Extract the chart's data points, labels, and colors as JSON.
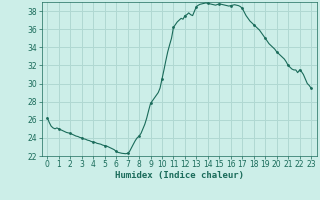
{
  "xlabel": "Humidex (Indice chaleur)",
  "bg_color": "#cceee8",
  "grid_color": "#b0d8d2",
  "line_color": "#1a6b5a",
  "xlim": [
    -0.5,
    23.5
  ],
  "ylim": [
    22,
    39
  ],
  "yticks": [
    22,
    24,
    26,
    28,
    30,
    32,
    34,
    36,
    38
  ],
  "xticks": [
    0,
    1,
    2,
    3,
    4,
    5,
    6,
    7,
    8,
    9,
    10,
    11,
    12,
    13,
    14,
    15,
    16,
    17,
    18,
    19,
    20,
    21,
    22,
    23
  ],
  "x": [
    0,
    0.17,
    0.33,
    0.5,
    0.67,
    0.83,
    1.0,
    1.17,
    1.33,
    1.5,
    1.67,
    1.83,
    2.0,
    2.17,
    2.33,
    2.5,
    2.67,
    2.83,
    3.0,
    3.17,
    3.33,
    3.5,
    3.67,
    3.83,
    4.0,
    4.17,
    4.33,
    4.5,
    4.67,
    4.83,
    5.0,
    5.17,
    5.33,
    5.5,
    5.67,
    5.83,
    6.0,
    6.17,
    6.33,
    6.5,
    6.67,
    6.83,
    7.0,
    7.17,
    7.33,
    7.5,
    7.67,
    7.83,
    8.0,
    8.17,
    8.33,
    8.5,
    8.67,
    8.83,
    9.0,
    9.17,
    9.33,
    9.5,
    9.67,
    9.83,
    10.0,
    10.17,
    10.33,
    10.5,
    10.67,
    10.83,
    11.0,
    11.17,
    11.33,
    11.5,
    11.67,
    11.83,
    12.0,
    12.17,
    12.33,
    12.5,
    12.67,
    12.83,
    13.0,
    13.17,
    13.33,
    13.5,
    13.67,
    13.83,
    14.0,
    14.17,
    14.33,
    14.5,
    14.67,
    14.83,
    15.0,
    15.17,
    15.33,
    15.5,
    15.67,
    15.83,
    16.0,
    16.17,
    16.33,
    16.5,
    16.67,
    16.83,
    17.0,
    17.17,
    17.33,
    17.5,
    17.67,
    17.83,
    18.0,
    18.17,
    18.33,
    18.5,
    18.67,
    18.83,
    19.0,
    19.17,
    19.33,
    19.5,
    19.67,
    19.83,
    20.0,
    20.17,
    20.33,
    20.5,
    20.67,
    20.83,
    21.0,
    21.17,
    21.33,
    21.5,
    21.67,
    21.83,
    22.0,
    22.17,
    22.33,
    22.5,
    22.67,
    22.83,
    23.0
  ],
  "y": [
    26.2,
    25.7,
    25.3,
    25.1,
    25.0,
    25.1,
    25.0,
    24.9,
    24.8,
    24.7,
    24.6,
    24.55,
    24.5,
    24.4,
    24.3,
    24.2,
    24.15,
    24.05,
    24.0,
    23.9,
    23.85,
    23.75,
    23.7,
    23.6,
    23.55,
    23.5,
    23.4,
    23.35,
    23.3,
    23.2,
    23.15,
    23.1,
    23.0,
    22.9,
    22.8,
    22.7,
    22.5,
    22.4,
    22.35,
    22.3,
    22.28,
    22.25,
    22.3,
    22.5,
    22.9,
    23.3,
    23.7,
    24.0,
    24.2,
    24.5,
    25.0,
    25.5,
    26.2,
    27.0,
    27.8,
    28.1,
    28.4,
    28.7,
    29.0,
    29.5,
    30.5,
    31.5,
    32.5,
    33.5,
    34.3,
    35.0,
    36.2,
    36.5,
    36.8,
    37.0,
    37.2,
    37.1,
    37.5,
    37.6,
    37.8,
    37.6,
    37.5,
    38.0,
    38.5,
    38.65,
    38.75,
    38.8,
    38.85,
    38.9,
    38.85,
    38.8,
    38.75,
    38.7,
    38.65,
    38.72,
    38.8,
    38.75,
    38.7,
    38.65,
    38.6,
    38.55,
    38.6,
    38.65,
    38.7,
    38.65,
    38.6,
    38.5,
    38.3,
    37.9,
    37.5,
    37.2,
    36.9,
    36.7,
    36.5,
    36.3,
    36.1,
    35.9,
    35.6,
    35.3,
    35.0,
    34.7,
    34.4,
    34.2,
    34.0,
    33.8,
    33.5,
    33.3,
    33.1,
    32.9,
    32.7,
    32.4,
    32.0,
    31.8,
    31.6,
    31.5,
    31.5,
    31.2,
    31.5,
    31.3,
    31.0,
    30.5,
    30.0,
    29.8,
    29.5
  ],
  "marker_x": [
    0,
    1,
    2,
    3,
    4,
    5,
    6,
    7,
    8,
    9,
    10,
    11,
    12,
    13,
    14,
    15,
    16,
    17,
    18,
    19,
    20,
    21,
    22,
    23
  ],
  "marker_y": [
    26.2,
    25.0,
    24.5,
    24.0,
    23.55,
    23.15,
    22.5,
    22.3,
    24.2,
    27.8,
    30.5,
    36.2,
    37.5,
    38.5,
    38.85,
    38.8,
    38.6,
    38.3,
    36.5,
    35.0,
    33.5,
    32.0,
    31.5,
    29.5
  ]
}
